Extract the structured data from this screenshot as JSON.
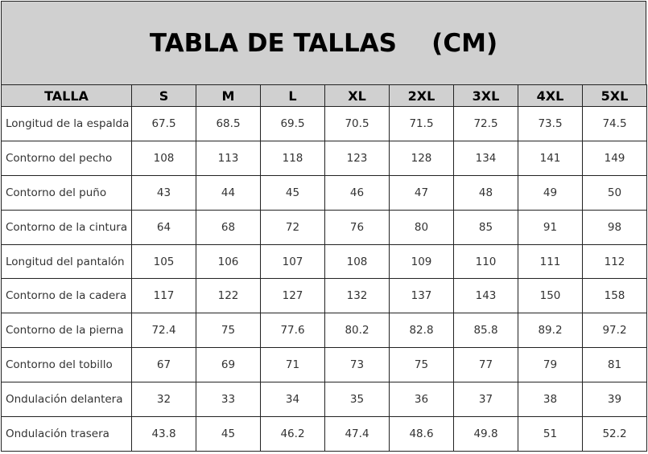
{
  "title": "TABLA DE TALLAS    (CM)",
  "header": [
    "TALLA",
    "S",
    "M",
    "L",
    "XL",
    "2XL",
    "3XL",
    "4XL",
    "5XL"
  ],
  "rows": [
    {
      "label": "Longitud de la espalda",
      "values": [
        "67.5",
        "68.5",
        "69.5",
        "70.5",
        "71.5",
        "72.5",
        "73.5",
        "74.5"
      ]
    },
    {
      "label": "Contorno del pecho",
      "values": [
        "108",
        "113",
        "118",
        "123",
        "128",
        "134",
        "141",
        "149"
      ]
    },
    {
      "label": "Contorno del puño",
      "values": [
        "43",
        "44",
        "45",
        "46",
        "47",
        "48",
        "49",
        "50"
      ]
    },
    {
      "label": "Contorno de la cintura",
      "values": [
        "64",
        "68",
        "72",
        "76",
        "80",
        "85",
        "91",
        "98"
      ]
    },
    {
      "label": "Longitud del pantalón",
      "values": [
        "105",
        "106",
        "107",
        "108",
        "109",
        "110",
        "111",
        "112"
      ]
    },
    {
      "label": "Contorno de la cadera",
      "values": [
        "117",
        "122",
        "127",
        "132",
        "137",
        "143",
        "150",
        "158"
      ]
    },
    {
      "label": "Contorno de la pierna",
      "values": [
        "72.4",
        "75",
        "77.6",
        "80.2",
        "82.8",
        "85.8",
        "89.2",
        "97.2"
      ]
    },
    {
      "label": "Contorno del tobillo",
      "values": [
        "67",
        "69",
        "71",
        "73",
        "75",
        "77",
        "79",
        "81"
      ]
    },
    {
      "label": "Ondulación delantera",
      "values": [
        "32",
        "33",
        "34",
        "35",
        "36",
        "37",
        "38",
        "39"
      ]
    },
    {
      "label": "Ondulación trasera",
      "values": [
        "43.8",
        "45",
        "46.2",
        "47.4",
        "48.6",
        "49.8",
        "51",
        "52.2"
      ]
    }
  ],
  "colors": {
    "header_bg": "#d0d0d0",
    "border": "#222222"
  }
}
